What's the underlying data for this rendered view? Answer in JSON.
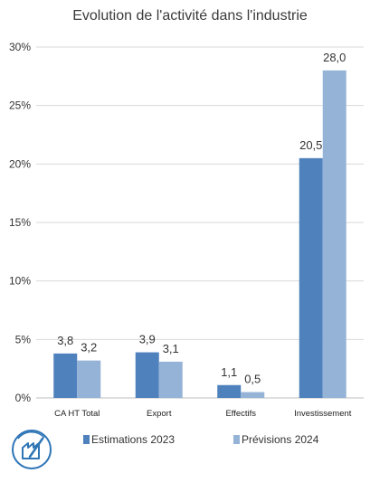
{
  "chart_data": {
    "type": "bar",
    "title": "Evolution de l'activité dans l'industrie",
    "categories": [
      "CA HT Total",
      "Export",
      "Effectifs",
      "Investissement"
    ],
    "series": [
      {
        "name": "Estimations 2023",
        "values": [
          3.8,
          3.9,
          1.1,
          20.5
        ],
        "labels": [
          "3,8",
          "3,9",
          "1,1",
          "20,5"
        ],
        "color": "#4f81bd"
      },
      {
        "name": "Prévisions 2024",
        "values": [
          3.2,
          3.1,
          0.5,
          28.0
        ],
        "labels": [
          "3,2",
          "3,1",
          "0,5",
          "28,0"
        ],
        "color": "#95b3d7"
      }
    ],
    "yticks": [
      0,
      5,
      10,
      15,
      20,
      25,
      30
    ],
    "ytick_labels": [
      "0%",
      "5%",
      "10%",
      "15%",
      "20%",
      "25%",
      "30%"
    ],
    "ylim": [
      0,
      30
    ],
    "grid": true,
    "legend_position": "bottom"
  },
  "logo": {
    "icon": "industry-logo-icon",
    "color": "#2e75b6"
  }
}
